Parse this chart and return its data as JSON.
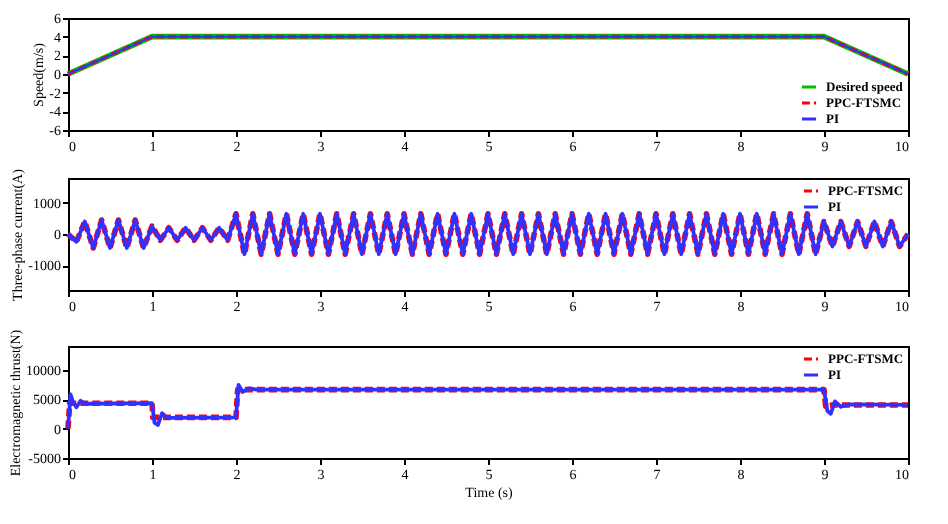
{
  "chart_data": [
    {
      "type": "line",
      "ylabel": "Speed(m/s)",
      "xlim": [
        0,
        10
      ],
      "xticks": [
        0,
        1,
        2,
        3,
        4,
        5,
        6,
        7,
        8,
        9,
        10
      ],
      "ylim": [
        -6,
        6
      ],
      "yticks": [
        -6,
        -4,
        -2,
        0,
        2,
        4,
        6
      ],
      "legend": "bottom right",
      "x": [
        0,
        1,
        9,
        10
      ],
      "series": [
        {
          "name": "Desired speed",
          "color": "#00c000",
          "line_style": "solid",
          "values": [
            0,
            4,
            4,
            0
          ]
        },
        {
          "name": "PPC-FTSMC",
          "color": "#ff0000",
          "line_style": "dashed",
          "values": [
            0,
            4,
            4,
            0
          ]
        },
        {
          "name": "PI",
          "color": "#3030ff",
          "line_style": "solid",
          "values": [
            0,
            4,
            4,
            0
          ]
        }
      ]
    },
    {
      "type": "line",
      "ylabel": "Three-phase current(A)",
      "xlim": [
        0,
        10
      ],
      "xticks": [
        0,
        1,
        2,
        3,
        4,
        5,
        6,
        7,
        8,
        9,
        10
      ],
      "ylim": [
        -1800,
        1800
      ],
      "yticks": [
        -1000,
        0,
        1000
      ],
      "legend": "top right",
      "x": [
        0,
        0.1,
        0.2,
        0.3,
        0.4,
        0.5,
        0.6,
        0.7,
        0.8,
        0.9,
        1,
        1.1,
        1.2,
        1.3,
        1.4,
        1.5,
        1.6,
        1.7,
        1.8,
        1.9,
        2,
        2.1,
        2.2,
        2.3,
        2.4,
        2.5,
        2.6,
        2.7,
        2.8,
        2.9,
        3,
        3.1,
        3.2,
        3.3,
        3.4,
        3.5,
        3.6,
        3.7,
        3.8,
        3.9,
        4,
        4.1,
        4.2,
        4.3,
        4.4,
        4.5,
        4.6,
        4.7,
        4.8,
        4.9,
        5,
        5.1,
        5.2,
        5.3,
        5.4,
        5.5,
        5.6,
        5.7,
        5.8,
        5.9,
        6,
        6.1,
        6.2,
        6.3,
        6.4,
        6.5,
        6.6,
        6.7,
        6.8,
        6.9,
        7,
        7.1,
        7.2,
        7.3,
        7.4,
        7.5,
        7.6,
        7.7,
        7.8,
        7.9,
        8,
        8.1,
        8.2,
        8.3,
        8.4,
        8.5,
        8.6,
        8.7,
        8.8,
        8.9,
        9,
        9.1,
        9.2,
        9.3,
        9.4,
        9.5,
        9.6,
        9.7,
        9.8,
        9.9,
        10
      ],
      "series": [
        {
          "name": "PPC-FTSMC",
          "color": "#ff0000",
          "line_style": "dashed",
          "values": [
            0,
            -250,
            400,
            -450,
            450,
            -450,
            450,
            -450,
            450,
            -450,
            250,
            -200,
            200,
            -200,
            200,
            -200,
            200,
            -200,
            200,
            -200,
            650,
            -650,
            650,
            -650,
            650,
            -650,
            650,
            -650,
            650,
            -650,
            650,
            -650,
            650,
            -650,
            650,
            -650,
            650,
            -650,
            650,
            -650,
            650,
            -650,
            650,
            -650,
            650,
            -650,
            650,
            -650,
            650,
            -650,
            650,
            -650,
            650,
            -650,
            650,
            -650,
            650,
            -650,
            650,
            -650,
            650,
            -650,
            650,
            -650,
            650,
            -650,
            650,
            -650,
            650,
            -650,
            650,
            -650,
            650,
            -650,
            650,
            -650,
            650,
            -650,
            650,
            -650,
            650,
            -650,
            650,
            -650,
            650,
            -650,
            650,
            -650,
            650,
            -650,
            400,
            -400,
            400,
            -400,
            400,
            -400,
            400,
            -400,
            400,
            -400,
            0
          ]
        },
        {
          "name": "PI",
          "color": "#3030ff",
          "line_style": "solid",
          "values": [
            0,
            -250,
            400,
            -450,
            450,
            -450,
            450,
            -450,
            450,
            -450,
            250,
            -200,
            200,
            -200,
            200,
            -200,
            200,
            -200,
            200,
            -200,
            650,
            -650,
            650,
            -650,
            650,
            -650,
            650,
            -650,
            650,
            -650,
            650,
            -650,
            650,
            -650,
            650,
            -650,
            650,
            -650,
            650,
            -650,
            650,
            -650,
            650,
            -650,
            650,
            -650,
            650,
            -650,
            650,
            -650,
            650,
            -650,
            650,
            -650,
            650,
            -650,
            650,
            -650,
            650,
            -650,
            650,
            -650,
            650,
            -650,
            650,
            -650,
            650,
            -650,
            650,
            -650,
            650,
            -650,
            650,
            -650,
            650,
            -650,
            650,
            -650,
            650,
            -650,
            650,
            -650,
            650,
            -650,
            650,
            -650,
            650,
            -650,
            650,
            -650,
            400,
            -400,
            400,
            -400,
            400,
            -400,
            400,
            -400,
            400,
            -400,
            0
          ]
        }
      ]
    },
    {
      "type": "line",
      "ylabel": "Electromagnetic thrust(N)",
      "xlabel": "Time (s)",
      "xlim": [
        0,
        10
      ],
      "xticks": [
        0,
        1,
        2,
        3,
        4,
        5,
        6,
        7,
        8,
        9,
        10
      ],
      "ylim": [
        -5000,
        14000
      ],
      "yticks": [
        -5000,
        0,
        5000,
        10000
      ],
      "legend": "top right",
      "series": [
        {
          "name": "PPC-FTSMC",
          "color": "#ff0000",
          "line_style": "dashed",
          "x": [
            0,
            0.02,
            1,
            1.01,
            1.1,
            2,
            2.02,
            9,
            9.02,
            9.1,
            10
          ],
          "values": [
            0,
            4300,
            4300,
            1900,
            1900,
            1900,
            6600,
            6600,
            3800,
            4000,
            4000
          ]
        },
        {
          "name": "PI",
          "color": "#3030ff",
          "line_style": "solid",
          "x": [
            0,
            0.03,
            0.06,
            0.1,
            0.15,
            0.2,
            1,
            1.03,
            1.07,
            1.12,
            1.18,
            2,
            2.03,
            2.08,
            2.15,
            2.25,
            9,
            9.04,
            9.08,
            9.13,
            9.2,
            9.3,
            10
          ],
          "values": [
            0,
            5800,
            4500,
            3600,
            4700,
            4200,
            4300,
            1000,
            600,
            2600,
            1800,
            1900,
            7400,
            6200,
            6800,
            6600,
            6600,
            3000,
            2500,
            4600,
            3700,
            4100,
            4000
          ]
        }
      ]
    }
  ]
}
